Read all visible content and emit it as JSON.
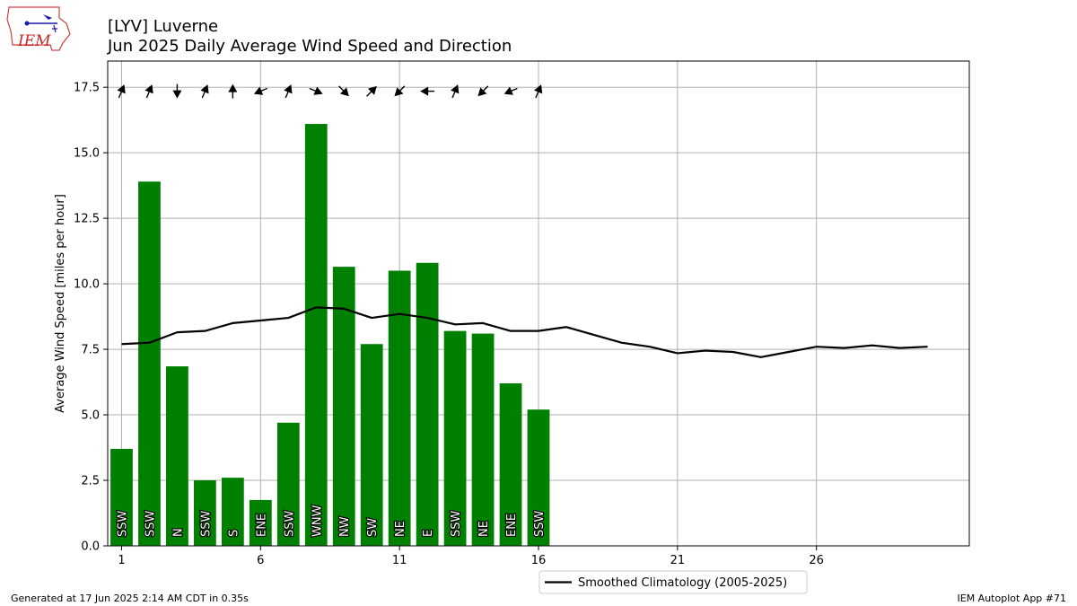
{
  "logo": {
    "text": "IEM"
  },
  "footer": {
    "generated": "Generated at 17 Jun 2025 2:14 AM CDT in 0.35s",
    "app": "IEM Autoplot App #71"
  },
  "colors": {
    "bar": "#008000",
    "line": "#000000",
    "grid": "#b0b0b0",
    "arrow": "#000000"
  },
  "chart_data": {
    "type": "bar",
    "title": "[LYV] Luverne",
    "subtitle": "Jun 2025 Daily Average Wind Speed and Direction",
    "ylabel": "Average Wind Speed [miles per hour]",
    "xlabel": "",
    "xlim": [
      0.5,
      31.5
    ],
    "ylim": [
      0,
      18.5
    ],
    "xticks": [
      1,
      6,
      11,
      16,
      21,
      26
    ],
    "yticks": [
      0.0,
      2.5,
      5.0,
      7.5,
      10.0,
      12.5,
      15.0,
      17.5
    ],
    "grid": true,
    "legend_position": "bottom-center",
    "series": [
      {
        "type": "bar",
        "days": [
          1,
          2,
          3,
          4,
          5,
          6,
          7,
          8,
          9,
          10,
          11,
          12,
          13,
          14,
          15,
          16
        ],
        "values": [
          3.7,
          13.9,
          6.85,
          2.5,
          2.6,
          1.75,
          4.7,
          16.1,
          10.65,
          7.7,
          10.5,
          10.8,
          8.2,
          8.1,
          6.2,
          5.2
        ],
        "directions": [
          "SSW",
          "SSW",
          "N",
          "SSW",
          "S",
          "ENE",
          "SSW",
          "WNW",
          "NW",
          "SW",
          "NE",
          "E",
          "SSW",
          "NE",
          "ENE",
          "SSW"
        ],
        "direction_degrees": [
          202.5,
          202.5,
          0,
          202.5,
          180,
          67.5,
          202.5,
          292.5,
          315,
          225,
          45,
          90,
          202.5,
          45,
          67.5,
          202.5
        ]
      },
      {
        "type": "line",
        "name": "Smoothed Climatology (2005-2025)",
        "days": [
          1,
          2,
          3,
          4,
          5,
          6,
          7,
          8,
          9,
          10,
          11,
          12,
          13,
          14,
          15,
          16,
          17,
          18,
          19,
          20,
          21,
          22,
          23,
          24,
          25,
          26,
          27,
          28,
          29,
          30
        ],
        "values": [
          7.7,
          7.75,
          8.15,
          8.2,
          8.5,
          8.6,
          8.7,
          9.1,
          9.05,
          8.7,
          8.85,
          8.7,
          8.45,
          8.5,
          8.2,
          8.2,
          8.35,
          8.05,
          7.75,
          7.6,
          7.35,
          7.45,
          7.4,
          7.2,
          7.4,
          7.6,
          7.55,
          7.65,
          7.55,
          7.6
        ]
      }
    ]
  }
}
